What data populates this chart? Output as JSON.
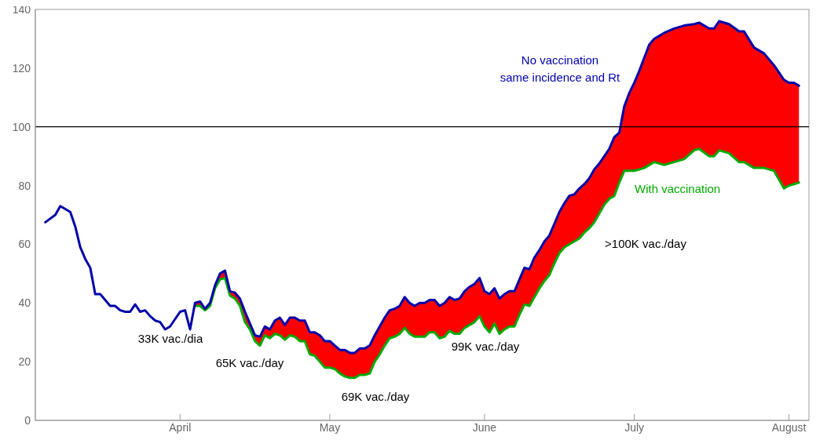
{
  "chart_data": {
    "type": "line",
    "legend": false,
    "grid": false,
    "marker": "none",
    "line_style": "solid",
    "x": [
      "--03-05",
      "--03-07",
      "--03-08",
      "--03-10",
      "--03-11",
      "--03-12",
      "--03-13",
      "--03-14",
      "--03-15",
      "--03-16",
      "--03-18",
      "--03-19",
      "--03-20",
      "--03-21",
      "--03-22",
      "--03-23",
      "--03-24",
      "--03-25",
      "--03-26",
      "--03-27",
      "--03-28",
      "--03-29",
      "--03-30",
      "--04-01",
      "--04-02",
      "--04-03",
      "--04-04",
      "--04-05",
      "--04-06",
      "--04-07",
      "--04-08",
      "--04-09",
      "--04-10",
      "--04-11",
      "--04-12",
      "--04-13",
      "--04-14",
      "--04-15",
      "--04-16",
      "--04-17",
      "--04-18",
      "--04-19",
      "--04-20",
      "--04-21",
      "--04-22",
      "--04-23",
      "--04-24",
      "--04-25",
      "--04-26",
      "--04-27",
      "--04-28",
      "--04-29",
      "--04-30",
      "--05-01",
      "--05-02",
      "--05-03",
      "--05-04",
      "--05-05",
      "--05-06",
      "--05-07",
      "--05-08",
      "--05-09",
      "--05-10",
      "--05-11",
      "--05-12",
      "--05-13",
      "--05-14",
      "--05-15",
      "--05-16",
      "--05-17",
      "--05-18",
      "--05-19",
      "--05-20",
      "--05-21",
      "--05-22",
      "--05-23",
      "--05-24",
      "--05-25",
      "--05-26",
      "--05-27",
      "--05-28",
      "--05-29",
      "--05-30",
      "--05-31",
      "--06-01",
      "--06-02",
      "--06-03",
      "--06-04",
      "--06-05",
      "--06-06",
      "--06-07",
      "--06-08",
      "--06-09",
      "--06-10",
      "--06-11",
      "--06-12",
      "--06-13",
      "--06-14",
      "--06-15",
      "--06-16",
      "--06-17",
      "--06-18",
      "--06-19",
      "--06-20",
      "--06-21",
      "--06-22",
      "--06-23",
      "--06-24",
      "--06-25",
      "--06-26",
      "--06-27",
      "--06-28",
      "--06-29",
      "--06-30",
      "--07-01",
      "--07-02",
      "--07-03",
      "--07-04",
      "--07-05",
      "--07-07",
      "--07-09",
      "--07-11",
      "--07-13",
      "--07-14",
      "--07-16",
      "--07-17",
      "--07-18",
      "--07-20",
      "--07-22",
      "--07-23",
      "--07-25",
      "--07-27",
      "--07-29",
      "--07-31",
      "--08-01",
      "--08-02",
      "--08-03"
    ],
    "series": [
      {
        "type": "area",
        "color": "#ff0000",
        "values": [
          null,
          null,
          null,
          null,
          null,
          null,
          null,
          null,
          null,
          null,
          null,
          null,
          null,
          null,
          null,
          null,
          null,
          null,
          null,
          null,
          null,
          null,
          null,
          null,
          null,
          null,
          40,
          40.5,
          38,
          40,
          46,
          50,
          51,
          44,
          43.5,
          41.5,
          37,
          33,
          29,
          28.5,
          32,
          31,
          34,
          35,
          32.5,
          35,
          35,
          34,
          34,
          30,
          30,
          29,
          27,
          27,
          25.5,
          24,
          24,
          23,
          23,
          24.5,
          24.5,
          25.5,
          29,
          32,
          35,
          37.5,
          38,
          39,
          42,
          40,
          39,
          40,
          40,
          41,
          41,
          39,
          40,
          42,
          41,
          41.5,
          44,
          45.5,
          46.5,
          48.5,
          44,
          43,
          45,
          41.5,
          43,
          44,
          44,
          48,
          52,
          51.5,
          55.5,
          58,
          61,
          63,
          67,
          71,
          74,
          76.5,
          77,
          79,
          80.5,
          82.5,
          85.5,
          87.5,
          90,
          92.5,
          96.5,
          98,
          107,
          111.5,
          115,
          119,
          123.5,
          128,
          130,
          132,
          133.5,
          134.5,
          135,
          135.5,
          133.5,
          133.5,
          136,
          135,
          132.5,
          132.5,
          127,
          125,
          121,
          116,
          115,
          115,
          114
        ]
      },
      {
        "name": "With vaccination",
        "color": "#00aa00",
        "values": [
          null,
          null,
          null,
          null,
          null,
          null,
          null,
          null,
          null,
          null,
          null,
          null,
          null,
          null,
          null,
          null,
          null,
          null,
          null,
          null,
          null,
          null,
          null,
          null,
          null,
          null,
          39,
          39,
          37.5,
          39,
          45,
          48,
          48.5,
          42.5,
          41.5,
          39,
          33.5,
          31,
          27,
          25.5,
          29,
          28,
          29.5,
          29,
          27.5,
          29,
          28.5,
          27,
          27,
          22.5,
          22,
          20,
          18,
          18,
          17.5,
          16,
          15,
          14.5,
          14.5,
          15.5,
          15.5,
          16,
          20,
          22.5,
          25.5,
          28,
          28.5,
          29.5,
          31.5,
          29.5,
          28.5,
          28.5,
          28.5,
          30,
          30,
          28,
          28.5,
          30.5,
          29.5,
          29.5,
          31.5,
          32.5,
          33.5,
          35.5,
          32,
          30,
          33,
          29.5,
          31,
          32,
          32,
          36,
          39.5,
          39,
          42,
          45,
          47.5,
          49.5,
          53.5,
          57,
          59,
          60,
          61,
          62,
          64,
          65.5,
          67.5,
          70.5,
          73.5,
          75.5,
          76.5,
          81,
          85,
          85,
          85,
          85.5,
          86,
          87,
          88,
          87,
          88,
          89,
          92,
          92.5,
          90,
          90,
          92,
          91,
          88,
          88,
          86,
          86,
          85,
          79,
          80,
          80.5,
          81
        ]
      },
      {
        "name": "No vaccination\nsame incidence and Rt",
        "color": "#0000aa",
        "values": [
          67.5,
          70,
          73,
          71,
          66,
          59,
          55,
          52,
          43,
          43,
          39,
          39,
          37.5,
          37,
          37,
          39.5,
          37,
          37.5,
          35.5,
          34,
          33.5,
          31,
          32,
          37,
          37.5,
          31,
          40,
          40.5,
          38,
          40,
          46,
          50,
          51,
          44,
          43.5,
          41.5,
          37,
          33,
          29,
          28.5,
          32,
          31,
          34,
          35,
          32.5,
          35,
          35,
          34,
          34,
          30,
          30,
          29,
          27,
          27,
          25.5,
          24,
          24,
          23,
          23,
          24.5,
          24.5,
          25.5,
          29,
          32,
          35,
          37.5,
          38,
          39,
          42,
          40,
          39,
          40,
          40,
          41,
          41,
          39,
          40,
          42,
          41,
          41.5,
          44,
          45.5,
          46.5,
          48.5,
          44,
          43,
          45,
          41.5,
          43,
          44,
          44,
          48,
          52,
          51.5,
          55.5,
          58,
          61,
          63,
          67,
          71,
          74,
          76.5,
          77,
          79,
          80.5,
          82.5,
          85.5,
          87.5,
          90,
          92.5,
          96.5,
          98,
          107,
          111.5,
          115,
          119,
          123.5,
          128,
          130,
          132,
          133.5,
          134.5,
          135,
          135.5,
          133.5,
          133.5,
          136,
          135,
          132.5,
          132.5,
          127,
          125,
          121,
          116,
          115,
          115,
          114
        ]
      }
    ],
    "xlim": [
      "--03-03",
      "--08-05"
    ],
    "xticks": [
      {
        "value": "--04-01",
        "label": "April"
      },
      {
        "value": "--05-01",
        "label": "May"
      },
      {
        "value": "--06-01",
        "label": "June"
      },
      {
        "value": "--07-01",
        "label": "July"
      },
      {
        "value": "--08-01",
        "label": "August"
      }
    ],
    "ylim": [
      0,
      140
    ],
    "yticks": [
      0,
      20,
      40,
      60,
      80,
      100,
      120,
      140
    ],
    "ref_lines": [
      {
        "axis": "y",
        "value": 100,
        "color": "#000000"
      }
    ],
    "annotations": [
      "33K vac./dia",
      "65K vac./day",
      "69K vac./day",
      "99K vac./day",
      ">100K vac./day"
    ]
  }
}
